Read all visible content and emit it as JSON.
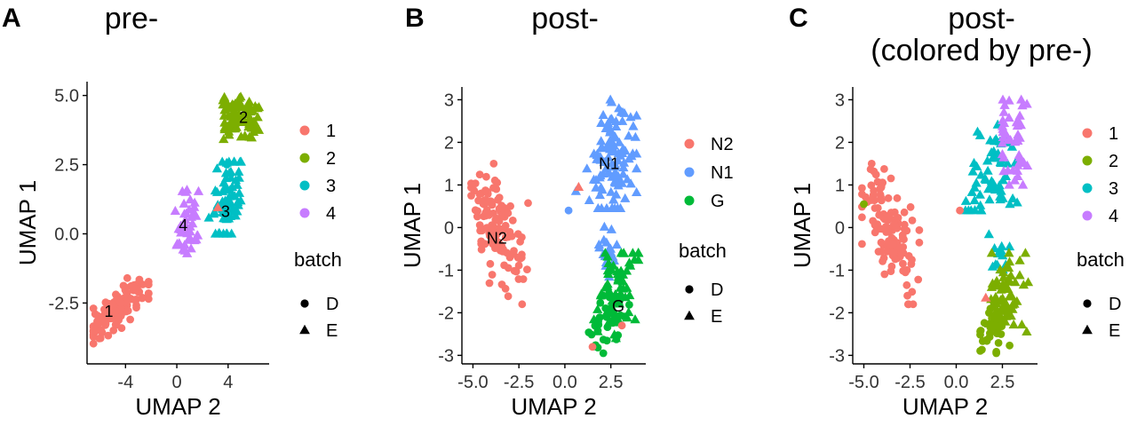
{
  "colors": {
    "red": "#F8766D",
    "olive": "#7CAE00",
    "teal": "#00BFC4",
    "purple": "#C77CFF",
    "blue": "#619CFF",
    "green": "#00BA38"
  },
  "chart_data": [
    {
      "type": "scatter",
      "panel_label": "A",
      "title": "pre-",
      "xlabel": "UMAP 2",
      "ylabel": "UMAP 1",
      "xlim": [
        -7,
        7.2
      ],
      "ylim": [
        -4.7,
        5.5
      ],
      "xticks": [
        -4,
        0,
        4
      ],
      "yticks": [
        -2.5,
        0.0,
        2.5,
        5.0
      ],
      "ytick_labels": [
        "-2.5",
        "0.0",
        "2.5",
        "5.0"
      ],
      "legend_title": "batch",
      "legend_colors": [
        {
          "label": "1",
          "color": "#F8766D"
        },
        {
          "label": "2",
          "color": "#7CAE00"
        },
        {
          "label": "3",
          "color": "#00BFC4"
        },
        {
          "label": "4",
          "color": "#C77CFF"
        }
      ],
      "legend_shapes": [
        {
          "label": "D",
          "shape": "circle"
        },
        {
          "label": "E",
          "shape": "triangle"
        }
      ],
      "cluster_labels": [
        {
          "text": "1",
          "x": -5.3,
          "y": -2.8
        },
        {
          "text": "2",
          "x": 5.2,
          "y": 4.2
        },
        {
          "text": "3",
          "x": 3.8,
          "y": 0.8
        },
        {
          "text": "4",
          "x": 0.5,
          "y": 0.3
        }
      ],
      "clusters": [
        {
          "label": "1",
          "color": "#F8766D",
          "shape": "circle",
          "n": 140,
          "cx": -4.6,
          "cy": -2.75,
          "sx": 1.2,
          "sy": 0.55,
          "rho": 0.75,
          "x_range": [
            -6.5,
            -2.2
          ],
          "y_range": [
            -4.25,
            -1.3
          ]
        },
        {
          "label": "2",
          "color": "#7CAE00",
          "shape": "triangle",
          "n": 90,
          "cx": 5.0,
          "cy": 4.15,
          "sx": 0.75,
          "sy": 0.35,
          "rho": 0.0,
          "x_range": [
            3.6,
            6.4
          ],
          "y_range": [
            3.3,
            4.95
          ]
        },
        {
          "label": "3",
          "color": "#00BFC4",
          "shape": "triangle",
          "n": 70,
          "cx": 4.0,
          "cy": 1.1,
          "sx": 0.5,
          "sy": 0.9,
          "rho": 0.5,
          "x_range": [
            2.5,
            5.2
          ],
          "y_range": [
            0.0,
            2.6
          ]
        },
        {
          "label": "4",
          "color": "#C77CFF",
          "shape": "triangle",
          "n": 45,
          "cx": 0.6,
          "cy": 0.4,
          "sx": 0.5,
          "sy": 0.55,
          "rho": 0.0,
          "x_range": [
            -0.3,
            1.8
          ],
          "y_range": [
            -0.8,
            1.6
          ]
        }
      ],
      "points": [
        {
          "x": 3.2,
          "y": 0.95,
          "color": "#F8766D",
          "shape": "triangle"
        },
        {
          "x": 3.9,
          "y": 2.5,
          "color": "#00BFC4",
          "shape": "circle"
        }
      ]
    },
    {
      "type": "scatter",
      "panel_label": "B",
      "title": "post-",
      "xlabel": "UMAP 2",
      "ylabel": "UMAP 1",
      "xlim": [
        -5.6,
        4.4
      ],
      "ylim": [
        -3.2,
        3.3
      ],
      "xticks": [
        -5.0,
        -2.5,
        0.0,
        2.5
      ],
      "xtick_labels": [
        "-5.0",
        "-2.5",
        "0.0",
        "2.5"
      ],
      "yticks": [
        -3,
        -2,
        -1,
        0,
        1,
        2,
        3
      ],
      "legend_title": "batch",
      "legend_colors": [
        {
          "label": "N2",
          "color": "#F8766D"
        },
        {
          "label": "N1",
          "color": "#619CFF"
        },
        {
          "label": "G",
          "color": "#00BA38"
        }
      ],
      "legend_shapes": [
        {
          "label": "D",
          "shape": "circle"
        },
        {
          "label": "E",
          "shape": "triangle"
        }
      ],
      "cluster_labels": [
        {
          "text": "N2",
          "x": -3.7,
          "y": -0.25
        },
        {
          "text": "N1",
          "x": 2.4,
          "y": 1.5
        },
        {
          "text": "G",
          "x": 2.9,
          "y": -1.85
        }
      ],
      "clusters": [
        {
          "label": "N2",
          "color": "#F8766D",
          "shape": "circle",
          "n": 120,
          "cx": -3.6,
          "cy": -0.1,
          "sx": 0.75,
          "sy": 0.7,
          "rho": -0.55,
          "x_range": [
            -5.1,
            -2.0
          ],
          "y_range": [
            -1.8,
            1.5
          ]
        },
        {
          "label": "N1",
          "color": "#619CFF",
          "shape": "triangle",
          "n": 110,
          "cx": 2.6,
          "cy": 1.6,
          "sx": 0.65,
          "sy": 0.8,
          "rho": 0.3,
          "x_range": [
            1.2,
            3.9
          ],
          "y_range": [
            0.45,
            3.0
          ]
        },
        {
          "label": "N1",
          "color": "#619CFF",
          "shape": "triangle",
          "n": 20,
          "cx": 2.2,
          "cy": -0.5,
          "sx": 0.35,
          "sy": 0.35,
          "rho": 0.0,
          "x_range": [
            1.4,
            3.2
          ],
          "y_range": [
            -1.3,
            0.2
          ]
        },
        {
          "label": "G",
          "color": "#00BA38",
          "shape": "triangle",
          "n": 65,
          "cx": 2.8,
          "cy": -1.35,
          "sx": 0.55,
          "sy": 0.55,
          "rho": 0.4,
          "x_range": [
            1.5,
            4.0
          ],
          "y_range": [
            -2.6,
            -0.6
          ]
        },
        {
          "label": "G",
          "color": "#00BA38",
          "shape": "circle",
          "n": 35,
          "cx": 2.2,
          "cy": -2.25,
          "sx": 0.5,
          "sy": 0.35,
          "rho": 0.3,
          "x_range": [
            1.3,
            3.5
          ],
          "y_range": [
            -2.95,
            -1.6
          ]
        }
      ],
      "points": [
        {
          "x": 0.2,
          "y": 0.4,
          "color": "#619CFF",
          "shape": "circle"
        },
        {
          "x": 0.6,
          "y": 0.85,
          "color": "#619CFF",
          "shape": "triangle"
        },
        {
          "x": 0.75,
          "y": 0.95,
          "color": "#F8766D",
          "shape": "triangle"
        },
        {
          "x": 1.5,
          "y": -2.8,
          "color": "#F8766D",
          "shape": "circle"
        },
        {
          "x": 3.1,
          "y": -2.3,
          "color": "#F8766D",
          "shape": "circle"
        }
      ]
    },
    {
      "type": "scatter",
      "panel_label": "C",
      "title": "post-\n(colored by pre-)",
      "xlabel": "UMAP 2",
      "ylabel": "UMAP 1",
      "xlim": [
        -5.6,
        4.4
      ],
      "ylim": [
        -3.2,
        3.3
      ],
      "xticks": [
        -5.0,
        -2.5,
        0.0,
        2.5
      ],
      "xtick_labels": [
        "-5.0",
        "-2.5",
        "0.0",
        "2.5"
      ],
      "yticks": [
        -3,
        -2,
        -1,
        0,
        1,
        2,
        3
      ],
      "legend_title": "batch",
      "legend_colors": [
        {
          "label": "1",
          "color": "#F8766D"
        },
        {
          "label": "2",
          "color": "#7CAE00"
        },
        {
          "label": "3",
          "color": "#00BFC4"
        },
        {
          "label": "4",
          "color": "#C77CFF"
        }
      ],
      "legend_shapes": [
        {
          "label": "D",
          "shape": "circle"
        },
        {
          "label": "E",
          "shape": "triangle"
        }
      ],
      "cluster_labels": [],
      "clusters": [
        {
          "label": "1",
          "color": "#F8766D",
          "shape": "circle",
          "n": 120,
          "cx": -3.6,
          "cy": -0.1,
          "sx": 0.75,
          "sy": 0.7,
          "rho": -0.55,
          "x_range": [
            -5.1,
            -2.0
          ],
          "y_range": [
            -1.8,
            1.5
          ]
        },
        {
          "label": "3",
          "color": "#00BFC4",
          "shape": "triangle",
          "n": 65,
          "cx": 2.0,
          "cy": 1.3,
          "sx": 0.6,
          "sy": 0.65,
          "rho": 0.2,
          "x_range": [
            0.5,
            3.3
          ],
          "y_range": [
            0.4,
            2.8
          ]
        },
        {
          "label": "4",
          "color": "#C77CFF",
          "shape": "triangle",
          "n": 45,
          "cx": 3.2,
          "cy": 2.1,
          "sx": 0.4,
          "sy": 0.6,
          "rho": 0.0,
          "x_range": [
            2.5,
            3.9
          ],
          "y_range": [
            1.0,
            3.0
          ]
        },
        {
          "label": "3",
          "color": "#00BFC4",
          "shape": "triangle",
          "n": 12,
          "cx": 2.3,
          "cy": -0.6,
          "sx": 0.3,
          "sy": 0.3,
          "rho": 0.0,
          "x_range": [
            1.7,
            3.0
          ],
          "y_range": [
            -1.2,
            0.0
          ]
        },
        {
          "label": "2",
          "color": "#7CAE00",
          "shape": "triangle",
          "n": 65,
          "cx": 2.7,
          "cy": -1.45,
          "sx": 0.55,
          "sy": 0.55,
          "rho": 0.4,
          "x_range": [
            1.4,
            4.0
          ],
          "y_range": [
            -2.6,
            -0.6
          ]
        },
        {
          "label": "2",
          "color": "#7CAE00",
          "shape": "circle",
          "n": 35,
          "cx": 2.1,
          "cy": -2.3,
          "sx": 0.45,
          "sy": 0.35,
          "rho": 0.3,
          "x_range": [
            1.3,
            3.5
          ],
          "y_range": [
            -2.95,
            -1.6
          ]
        }
      ],
      "points": [
        {
          "x": 0.2,
          "y": 0.4,
          "color": "#F8766D",
          "shape": "circle"
        },
        {
          "x": 1.6,
          "y": -1.65,
          "color": "#F8766D",
          "shape": "triangle"
        },
        {
          "x": -5.0,
          "y": 0.55,
          "color": "#7CAE00",
          "shape": "circle"
        }
      ]
    }
  ]
}
